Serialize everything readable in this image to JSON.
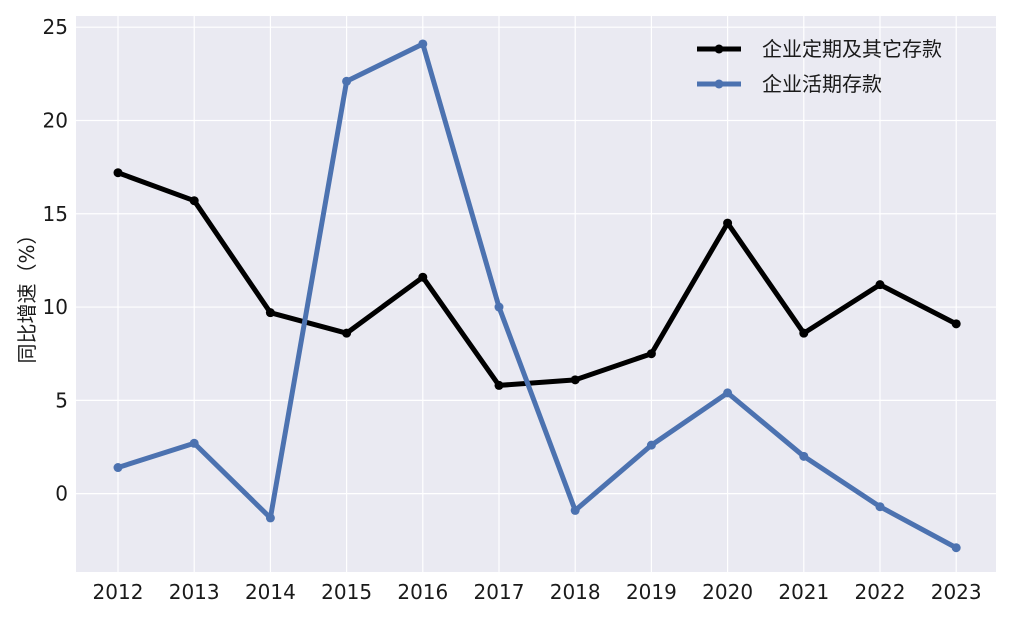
{
  "chart_data": {
    "type": "line",
    "x": [
      "2012",
      "2013",
      "2014",
      "2015",
      "2016",
      "2017",
      "2018",
      "2019",
      "2020",
      "2021",
      "2022",
      "2023"
    ],
    "series": [
      {
        "name": "企业定期及其它存款",
        "color": "#000000",
        "values": [
          17.2,
          15.7,
          9.7,
          8.6,
          11.6,
          5.8,
          6.1,
          7.5,
          14.5,
          8.6,
          11.2,
          9.1
        ]
      },
      {
        "name": "企业活期存款",
        "color": "#4c72b0",
        "values": [
          1.4,
          2.7,
          -1.3,
          22.1,
          24.1,
          10.0,
          -0.9,
          2.6,
          5.4,
          2.0,
          -0.7,
          -2.9
        ]
      }
    ],
    "xlabel": "",
    "ylabel": "同比增速（%）",
    "ylim": [
      -4.2,
      25.6
    ],
    "yticks": [
      0,
      5,
      10,
      15,
      20,
      25
    ],
    "grid": true,
    "background": "#eaeaf2",
    "legend": "top-right"
  }
}
